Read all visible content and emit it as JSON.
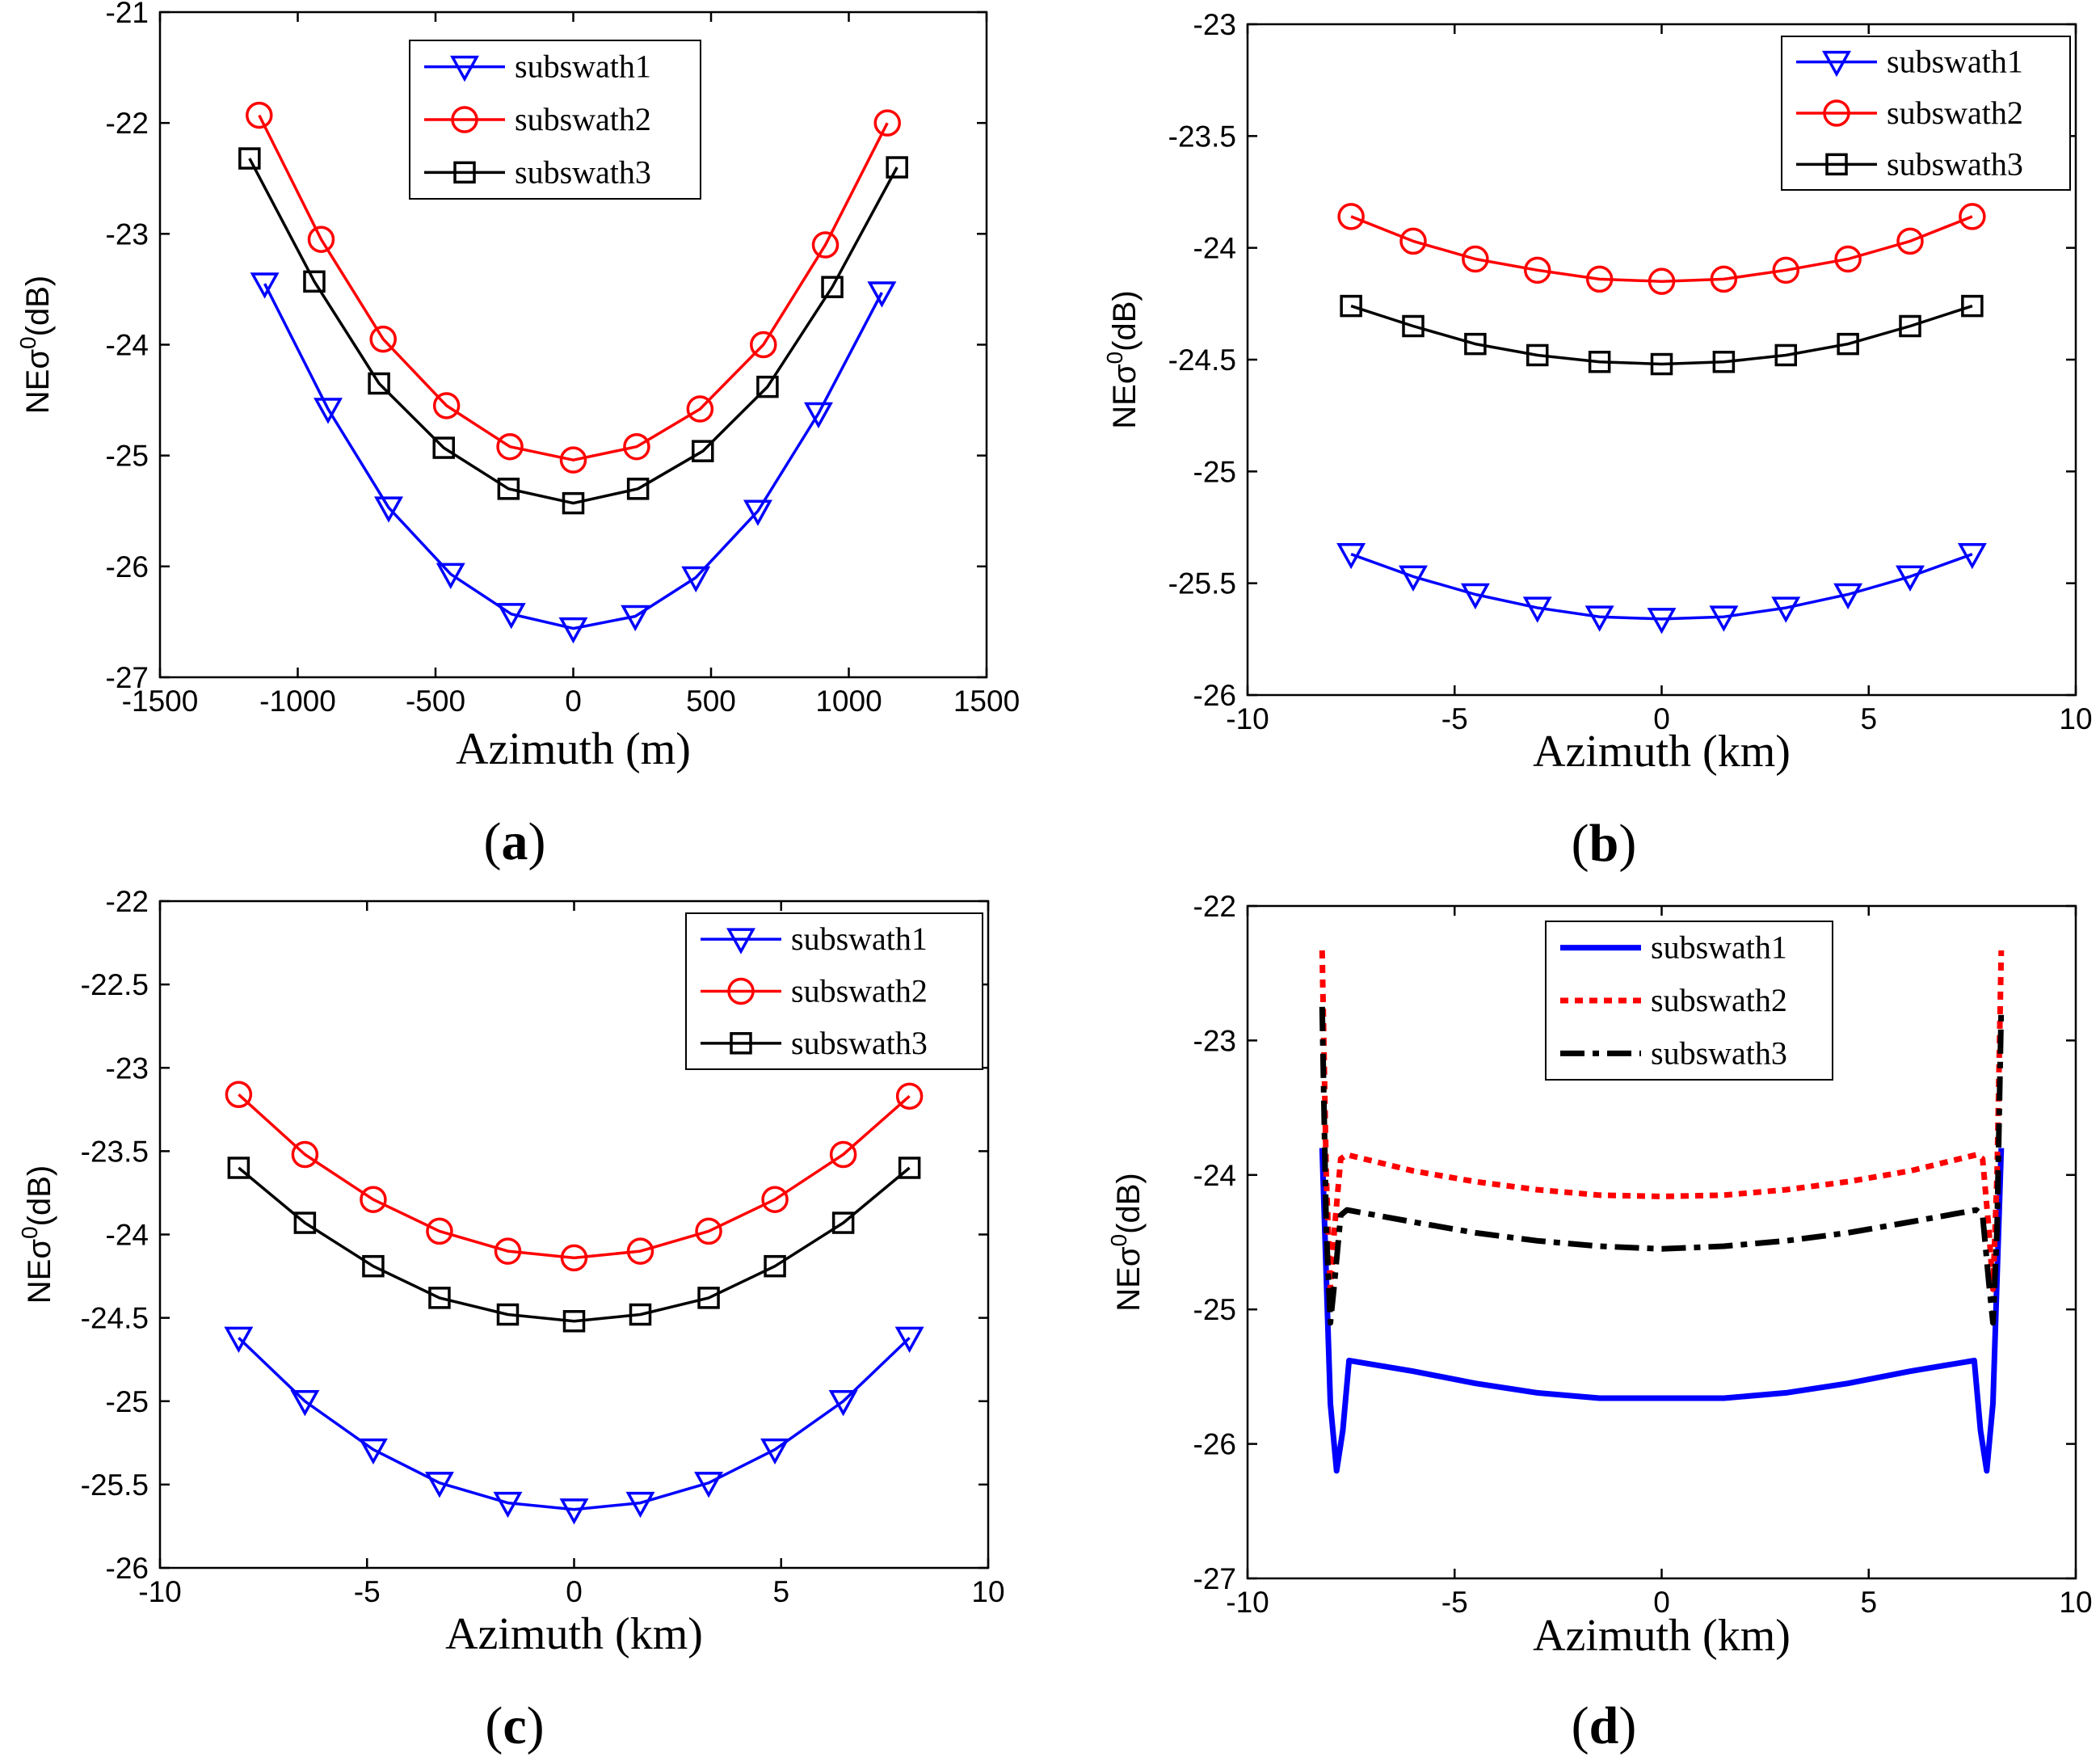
{
  "figure": {
    "y_label": {
      "main": "NEσ",
      "superscript": "0",
      "unit": "(dB)"
    }
  },
  "colors": {
    "subswath1": "#0000ff",
    "subswath2": "#ff0000",
    "subswath3": "#000000"
  },
  "chart_data": [
    {
      "id": "a",
      "panel_label": {
        "open": "(",
        "letter": "a",
        "close": ")"
      },
      "type": "line",
      "xlabel": "Azimuth (m)",
      "xlim": [
        -1500,
        1500
      ],
      "ylim": [
        -27,
        -21
      ],
      "xticks": [
        -1500,
        -1000,
        -500,
        0,
        500,
        1000,
        1500
      ],
      "yticks": [
        -27,
        -26,
        -25,
        -24,
        -23,
        -22,
        -21
      ],
      "legend": "top-center",
      "series": [
        {
          "name": "subswath1",
          "marker": "triangle-down",
          "dash": "solid",
          "x": [
            -1120,
            -890,
            -670,
            -445,
            -225,
            0,
            225,
            445,
            670,
            890,
            1120
          ],
          "y": [
            -23.45,
            -24.58,
            -25.47,
            -26.07,
            -26.43,
            -26.56,
            -26.45,
            -26.1,
            -25.5,
            -24.62,
            -23.53
          ]
        },
        {
          "name": "subswath2",
          "marker": "circle",
          "dash": "solid",
          "x": [
            -1140,
            -915,
            -690,
            -460,
            -230,
            0,
            230,
            460,
            690,
            915,
            1140
          ],
          "y": [
            -21.93,
            -23.05,
            -23.95,
            -24.55,
            -24.92,
            -25.04,
            -24.92,
            -24.58,
            -24.0,
            -23.1,
            -22.0
          ]
        },
        {
          "name": "subswath3",
          "marker": "square",
          "dash": "solid",
          "x": [
            -1175,
            -940,
            -705,
            -470,
            -235,
            0,
            235,
            470,
            705,
            940,
            1175
          ],
          "y": [
            -22.32,
            -23.43,
            -24.35,
            -24.93,
            -25.3,
            -25.43,
            -25.3,
            -24.96,
            -24.38,
            -23.48,
            -22.4
          ]
        }
      ]
    },
    {
      "id": "b",
      "panel_label": {
        "open": "(",
        "letter": "b",
        "close": ")"
      },
      "type": "line",
      "xlabel": "Azimuth (km)",
      "xlim": [
        -10,
        10
      ],
      "ylim": [
        -26,
        -23
      ],
      "xticks": [
        -10,
        -5,
        0,
        5,
        10
      ],
      "yticks": [
        -26,
        -25.5,
        -25,
        -24.5,
        -24,
        -23.5,
        -23
      ],
      "legend": "top-right",
      "series": [
        {
          "name": "subswath1",
          "marker": "triangle-down",
          "dash": "solid",
          "x": [
            -7.5,
            -6,
            -4.5,
            -3,
            -1.5,
            0,
            1.5,
            3,
            4.5,
            6,
            7.5
          ],
          "y": [
            -25.37,
            -25.47,
            -25.55,
            -25.61,
            -25.65,
            -25.66,
            -25.65,
            -25.61,
            -25.55,
            -25.47,
            -25.37
          ]
        },
        {
          "name": "subswath2",
          "marker": "circle",
          "dash": "solid",
          "x": [
            -7.5,
            -6,
            -4.5,
            -3,
            -1.5,
            0,
            1.5,
            3,
            4.5,
            6,
            7.5
          ],
          "y": [
            -23.86,
            -23.97,
            -24.05,
            -24.1,
            -24.14,
            -24.15,
            -24.14,
            -24.1,
            -24.05,
            -23.97,
            -23.86
          ]
        },
        {
          "name": "subswath3",
          "marker": "square",
          "dash": "solid",
          "x": [
            -7.5,
            -6,
            -4.5,
            -3,
            -1.5,
            0,
            1.5,
            3,
            4.5,
            6,
            7.5
          ],
          "y": [
            -24.26,
            -24.35,
            -24.43,
            -24.48,
            -24.51,
            -24.52,
            -24.51,
            -24.48,
            -24.43,
            -24.35,
            -24.26
          ]
        }
      ]
    },
    {
      "id": "c",
      "panel_label": {
        "open": "(",
        "letter": "c",
        "close": ")"
      },
      "type": "line",
      "xlabel": "Azimuth (km)",
      "xlim": [
        -10,
        10
      ],
      "ylim": [
        -26,
        -22
      ],
      "xticks": [
        -10,
        -5,
        0,
        5,
        10
      ],
      "yticks": [
        -26,
        -25.5,
        -25,
        -24.5,
        -24,
        -23.5,
        -23,
        -22.5,
        -22
      ],
      "legend": "top-right",
      "series": [
        {
          "name": "subswath1",
          "marker": "triangle-down",
          "dash": "solid",
          "x": [
            -8.1,
            -6.5,
            -4.85,
            -3.25,
            -1.6,
            0,
            1.6,
            3.25,
            4.85,
            6.5,
            8.1
          ],
          "y": [
            -24.62,
            -25.0,
            -25.29,
            -25.49,
            -25.61,
            -25.65,
            -25.61,
            -25.49,
            -25.29,
            -25.0,
            -24.62
          ]
        },
        {
          "name": "subswath2",
          "marker": "circle",
          "dash": "solid",
          "x": [
            -8.1,
            -6.5,
            -4.85,
            -3.25,
            -1.6,
            0,
            1.6,
            3.25,
            4.85,
            6.5,
            8.1
          ],
          "y": [
            -23.16,
            -23.52,
            -23.79,
            -23.98,
            -24.1,
            -24.14,
            -24.1,
            -23.98,
            -23.79,
            -23.52,
            -23.17
          ]
        },
        {
          "name": "subswath3",
          "marker": "square",
          "dash": "solid",
          "x": [
            -8.1,
            -6.5,
            -4.85,
            -3.25,
            -1.6,
            0,
            1.6,
            3.25,
            4.85,
            6.5,
            8.1
          ],
          "y": [
            -23.6,
            -23.93,
            -24.19,
            -24.38,
            -24.48,
            -24.52,
            -24.48,
            -24.38,
            -24.19,
            -23.93,
            -23.6
          ]
        }
      ]
    },
    {
      "id": "d",
      "panel_label": {
        "open": "(",
        "letter": "d",
        "close": ")"
      },
      "type": "line",
      "xlabel": "Azimuth (km)",
      "xlim": [
        -10,
        10
      ],
      "ylim": [
        -27,
        -22
      ],
      "xticks": [
        -10,
        -5,
        0,
        5,
        10
      ],
      "yticks": [
        -27,
        -26,
        -25,
        -24,
        -23,
        -22
      ],
      "legend": "top-center",
      "series": [
        {
          "name": "subswath1",
          "marker": "none",
          "dash": "solid",
          "x": [
            -8.2,
            -8.0,
            -7.85,
            -7.7,
            -7.55,
            -6,
            -4.5,
            -3,
            -1.5,
            0,
            1.5,
            3,
            4.5,
            6,
            7.55,
            7.7,
            7.85,
            8.0,
            8.2
          ],
          "y": [
            -23.8,
            -25.7,
            -26.2,
            -25.9,
            -25.38,
            -25.46,
            -25.55,
            -25.62,
            -25.66,
            -25.66,
            -25.66,
            -25.62,
            -25.55,
            -25.46,
            -25.38,
            -25.9,
            -26.2,
            -25.7,
            -23.8
          ]
        },
        {
          "name": "subswath2",
          "marker": "none",
          "dash": "dotted",
          "x": [
            -8.2,
            -8.1,
            -8.0,
            -7.9,
            -7.75,
            -7.6,
            -6,
            -4.5,
            -3,
            -1.5,
            0,
            1.5,
            3,
            4.5,
            6,
            7.6,
            7.75,
            7.9,
            8.0,
            8.1,
            8.2
          ],
          "y": [
            -22.33,
            -24.0,
            -24.85,
            -24.4,
            -23.88,
            -23.85,
            -23.97,
            -24.05,
            -24.11,
            -24.15,
            -24.16,
            -24.15,
            -24.11,
            -24.05,
            -23.97,
            -23.85,
            -23.88,
            -24.4,
            -24.85,
            -24.0,
            -22.33
          ]
        },
        {
          "name": "subswath3",
          "marker": "none",
          "dash": "dashdot",
          "x": [
            -8.2,
            -8.1,
            -8.0,
            -7.9,
            -7.75,
            -7.6,
            -6,
            -4.5,
            -3,
            -1.5,
            0,
            1.5,
            3,
            4.5,
            6,
            7.6,
            7.75,
            7.9,
            8.0,
            8.1,
            8.2
          ],
          "y": [
            -22.75,
            -24.4,
            -25.1,
            -24.8,
            -24.3,
            -24.26,
            -24.35,
            -24.43,
            -24.49,
            -24.53,
            -24.55,
            -24.53,
            -24.49,
            -24.43,
            -24.35,
            -24.26,
            -24.3,
            -24.8,
            -25.1,
            -24.4,
            -22.75
          ]
        }
      ]
    }
  ]
}
